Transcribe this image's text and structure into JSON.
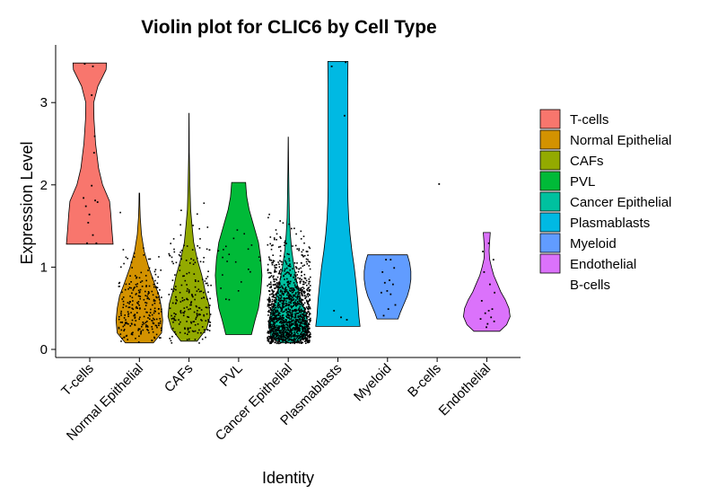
{
  "chart_data": {
    "type": "violin",
    "title": "Violin plot for CLIC6 by Cell Type",
    "xlabel": "Identity",
    "ylabel": "Expression Level",
    "ylim": [
      -0.1,
      3.6
    ],
    "yticks": [
      0,
      1,
      2,
      3
    ],
    "categories": [
      "T-cells",
      "Normal Epithelial",
      "CAFs",
      "PVL",
      "Cancer Epithelial",
      "Plasmablasts",
      "Myeloid",
      "B-cells",
      "Endothelial"
    ],
    "colors": {
      "T-cells": "#F8766D",
      "Normal Epithelial": "#D39200",
      "CAFs": "#93AA00",
      "PVL": "#00BA38",
      "Cancer Epithelial": "#00C19F",
      "Plasmablasts": "#00B9E3",
      "Myeloid": "#619CFF",
      "Endothelial": "#DB72FB",
      "B-cells": "#FF61C3"
    },
    "legend": {
      "position": "right",
      "entries": [
        "T-cells",
        "Normal Epithelial",
        "CAFs",
        "PVL",
        "Cancer Epithelial",
        "Plasmablasts",
        "Myeloid",
        "Endothelial",
        "B-cells"
      ]
    },
    "grid": false,
    "violins": [
      {
        "category": "T-cells",
        "min": 1.28,
        "max": 3.48,
        "density": [
          [
            1.28,
            1.0
          ],
          [
            1.45,
            0.95
          ],
          [
            1.65,
            0.9
          ],
          [
            1.8,
            0.85
          ],
          [
            2.0,
            0.55
          ],
          [
            2.2,
            0.38
          ],
          [
            2.5,
            0.25
          ],
          [
            2.8,
            0.18
          ],
          [
            3.0,
            0.17
          ],
          [
            3.2,
            0.35
          ],
          [
            3.4,
            0.7
          ],
          [
            3.48,
            0.72
          ]
        ]
      },
      {
        "category": "Normal Epithelial",
        "min": 0.08,
        "max": 1.9,
        "density": [
          [
            0.08,
            0.6
          ],
          [
            0.2,
            0.95
          ],
          [
            0.35,
            1.0
          ],
          [
            0.5,
            0.95
          ],
          [
            0.65,
            0.85
          ],
          [
            0.8,
            0.65
          ],
          [
            1.0,
            0.4
          ],
          [
            1.2,
            0.2
          ],
          [
            1.4,
            0.09
          ],
          [
            1.6,
            0.04
          ],
          [
            1.75,
            0.02
          ],
          [
            1.9,
            0.01
          ]
        ]
      },
      {
        "category": "CAFs",
        "min": 0.1,
        "max": 2.87,
        "density": [
          [
            0.1,
            0.35
          ],
          [
            0.25,
            0.75
          ],
          [
            0.4,
            0.9
          ],
          [
            0.55,
            0.85
          ],
          [
            0.7,
            0.7
          ],
          [
            0.9,
            0.55
          ],
          [
            1.1,
            0.35
          ],
          [
            1.3,
            0.2
          ],
          [
            1.5,
            0.13
          ],
          [
            1.7,
            0.07
          ],
          [
            2.0,
            0.04
          ],
          [
            2.4,
            0.01
          ],
          [
            2.87,
            0.005
          ]
        ]
      },
      {
        "category": "PVL",
        "min": 0.18,
        "max": 2.03,
        "density": [
          [
            0.18,
            0.55
          ],
          [
            0.35,
            0.7
          ],
          [
            0.5,
            0.85
          ],
          [
            0.7,
            0.95
          ],
          [
            0.9,
            1.0
          ],
          [
            1.1,
            0.95
          ],
          [
            1.3,
            0.85
          ],
          [
            1.5,
            0.65
          ],
          [
            1.7,
            0.45
          ],
          [
            1.85,
            0.35
          ],
          [
            1.95,
            0.32
          ],
          [
            2.03,
            0.3
          ]
        ]
      },
      {
        "category": "Cancer Epithelial",
        "min": 0.08,
        "max": 2.58,
        "density": [
          [
            0.08,
            0.3
          ],
          [
            0.15,
            0.75
          ],
          [
            0.3,
            0.85
          ],
          [
            0.45,
            0.75
          ],
          [
            0.6,
            0.55
          ],
          [
            0.8,
            0.38
          ],
          [
            1.0,
            0.25
          ],
          [
            1.2,
            0.15
          ],
          [
            1.4,
            0.09
          ],
          [
            1.6,
            0.05
          ],
          [
            1.9,
            0.03
          ],
          [
            2.2,
            0.015
          ],
          [
            2.58,
            0.005
          ]
        ]
      },
      {
        "category": "Plasmablasts",
        "min": 0.28,
        "max": 3.5,
        "density": [
          [
            0.28,
            0.95
          ],
          [
            0.4,
            0.9
          ],
          [
            0.6,
            0.85
          ],
          [
            0.8,
            0.78
          ],
          [
            1.0,
            0.7
          ],
          [
            1.2,
            0.6
          ],
          [
            1.4,
            0.52
          ],
          [
            1.6,
            0.46
          ],
          [
            1.8,
            0.43
          ],
          [
            2.0,
            0.42
          ],
          [
            2.4,
            0.42
          ],
          [
            2.8,
            0.42
          ],
          [
            3.2,
            0.42
          ],
          [
            3.5,
            0.43
          ]
        ]
      },
      {
        "category": "Myeloid",
        "min": 0.37,
        "max": 1.15,
        "density": [
          [
            0.37,
            0.45
          ],
          [
            0.45,
            0.55
          ],
          [
            0.55,
            0.7
          ],
          [
            0.65,
            0.85
          ],
          [
            0.75,
            0.95
          ],
          [
            0.85,
            1.0
          ],
          [
            0.95,
            1.0
          ],
          [
            1.05,
            0.95
          ],
          [
            1.15,
            0.85
          ]
        ]
      },
      {
        "category": "Endothelial",
        "min": 0.22,
        "max": 1.42,
        "density": [
          [
            0.22,
            0.55
          ],
          [
            0.3,
            0.85
          ],
          [
            0.4,
            1.0
          ],
          [
            0.5,
            0.95
          ],
          [
            0.6,
            0.8
          ],
          [
            0.7,
            0.6
          ],
          [
            0.8,
            0.45
          ],
          [
            0.9,
            0.3
          ],
          [
            1.0,
            0.2
          ],
          [
            1.1,
            0.12
          ],
          [
            1.2,
            0.1
          ],
          [
            1.3,
            0.12
          ],
          [
            1.42,
            0.15
          ]
        ]
      }
    ],
    "points": {
      "T-cells": [
        [
          -0.25,
          3.48
        ],
        [
          0.1,
          3.45
        ],
        [
          0.05,
          3.1
        ],
        [
          0.15,
          2.4
        ],
        [
          0.05,
          2.0
        ],
        [
          0.2,
          1.82
        ],
        [
          0.3,
          1.8
        ],
        [
          -0.2,
          1.75
        ],
        [
          -0.1,
          1.55
        ],
        [
          0.1,
          1.4
        ],
        [
          -0.15,
          1.3
        ],
        [
          0.25,
          1.3
        ],
        [
          -0.05,
          1.65
        ],
        [
          0.18,
          2.6
        ],
        [
          -0.3,
          1.85
        ]
      ],
      "Plasmablasts": [
        [
          0.3,
          3.5
        ],
        [
          0.25,
          2.85
        ],
        [
          -0.3,
          3.45
        ],
        [
          -0.2,
          0.48
        ],
        [
          0.1,
          0.4
        ],
        [
          0.35,
          0.37
        ]
      ],
      "Myeloid": [
        [
          -0.1,
          1.1
        ],
        [
          0.1,
          1.1
        ],
        [
          0.25,
          1.0
        ],
        [
          -0.25,
          0.95
        ],
        [
          0.05,
          0.85
        ],
        [
          -0.15,
          0.82
        ],
        [
          0.2,
          0.8
        ],
        [
          -0.05,
          0.72
        ],
        [
          0.1,
          0.68
        ],
        [
          -0.3,
          0.7
        ],
        [
          0.3,
          0.55
        ],
        [
          0.0,
          0.5
        ],
        [
          -0.2,
          0.42
        ]
      ],
      "B-cells": [
        [
          0.05,
          2.02
        ]
      ],
      "Endothelial": [
        [
          -0.2,
          1.2
        ],
        [
          0.05,
          1.3
        ],
        [
          0.25,
          1.1
        ],
        [
          -0.15,
          0.95
        ],
        [
          0.1,
          0.8
        ],
        [
          0.3,
          0.7
        ],
        [
          -0.25,
          0.6
        ],
        [
          0.2,
          0.5
        ],
        [
          0.05,
          0.48
        ],
        [
          -0.1,
          0.45
        ],
        [
          0.15,
          0.4
        ],
        [
          -0.3,
          0.38
        ],
        [
          0.28,
          0.35
        ],
        [
          0.0,
          0.32
        ],
        [
          -0.05,
          0.28
        ]
      ]
    },
    "point_clouds": {
      "Normal Epithelial": {
        "count": 260,
        "max": 1.88,
        "mode": 0.35,
        "spread": 0.38
      },
      "CAFs": {
        "count": 220,
        "max": 2.85,
        "mode": 0.45,
        "spread": 0.5
      },
      "PVL": {
        "count": 22,
        "max": 1.55,
        "mode": 0.9,
        "spread": 0.45
      },
      "Cancer Epithelial": {
        "count": 1400,
        "max": 2.58,
        "mode": 0.3,
        "spread": 0.45
      }
    }
  }
}
